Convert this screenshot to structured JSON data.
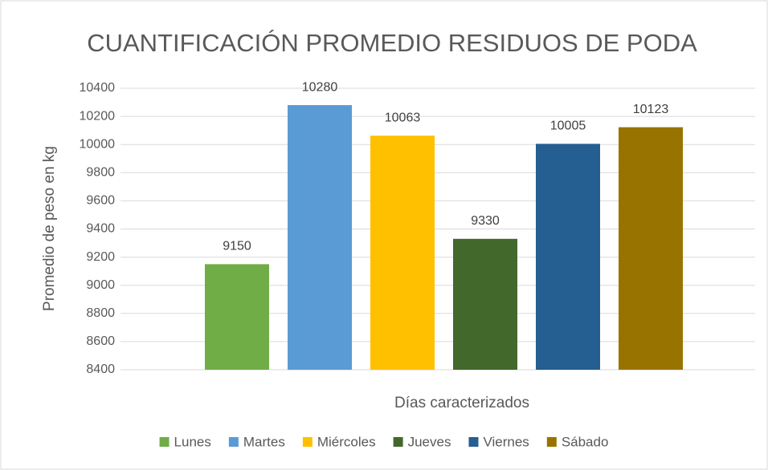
{
  "chart_data": {
    "type": "bar",
    "title": "CUANTIFICACIÓN PROMEDIO RESIDUOS DE PODA",
    "x_label": "Días caracterizados",
    "y_label": "Promedio de peso en kg",
    "categories": [
      "Lunes",
      "Martes",
      "Miércoles",
      "Jueves",
      "Viernes",
      "Sábado"
    ],
    "values": [
      9150,
      10280,
      10063,
      9330,
      10005,
      10123
    ],
    "colors": [
      "#70ad47",
      "#5b9bd5",
      "#ffc000",
      "#43682b",
      "#255e91",
      "#997300"
    ],
    "ylim": [
      8400,
      10400
    ],
    "yticks": [
      8400,
      8600,
      8800,
      9000,
      9200,
      9400,
      9600,
      9800,
      10000,
      10200,
      10400
    ],
    "grid": true,
    "legend": "bottom"
  }
}
